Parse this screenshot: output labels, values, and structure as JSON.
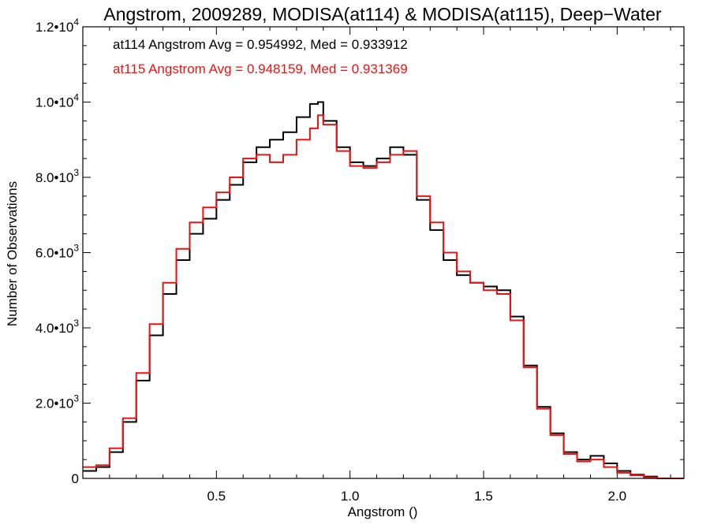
{
  "chart_data": {
    "type": "line",
    "title": "Angstrom, 2009289, MODISA(at114) & MODISA(at115), Deep−Water",
    "xlabel": "Angstrom ()",
    "ylabel": "Number of Observations",
    "xlim": [
      0.0,
      2.25
    ],
    "ylim": [
      0,
      12000
    ],
    "x_ticks": [
      0.5,
      1.0,
      1.5,
      2.0
    ],
    "x_tick_labels": [
      "0.5",
      "1.0",
      "1.5",
      "2.0"
    ],
    "y_ticks": [
      0,
      2000,
      4000,
      6000,
      8000,
      10000,
      12000
    ],
    "y_tick_labels": [
      {
        "mantissa": "0",
        "exp": ""
      },
      {
        "mantissa": "2.0•10",
        "exp": "3"
      },
      {
        "mantissa": "4.0•10",
        "exp": "3"
      },
      {
        "mantissa": "6.0•10",
        "exp": "3"
      },
      {
        "mantissa": "8.0•10",
        "exp": "3"
      },
      {
        "mantissa": "1.0•10",
        "exp": "4"
      },
      {
        "mantissa": "1.2•10",
        "exp": "4"
      }
    ],
    "grid": false,
    "annotations": [
      {
        "text": "at114 Angstrom Avg = 0.954992, Med = 0.933912",
        "color": "#000000"
      },
      {
        "text": "at115 Angstrom Avg = 0.948159, Med = 0.931369",
        "color": "#ee1111"
      }
    ],
    "series": [
      {
        "name": "at114",
        "color": "#000000",
        "x": [
          0.0,
          0.05,
          0.1,
          0.15,
          0.2,
          0.25,
          0.3,
          0.35,
          0.4,
          0.45,
          0.5,
          0.55,
          0.6,
          0.65,
          0.7,
          0.75,
          0.8,
          0.85,
          0.88,
          0.9,
          0.95,
          1.0,
          1.05,
          1.1,
          1.15,
          1.2,
          1.25,
          1.3,
          1.35,
          1.4,
          1.45,
          1.5,
          1.55,
          1.6,
          1.65,
          1.7,
          1.75,
          1.8,
          1.85,
          1.9,
          1.95,
          2.0,
          2.05,
          2.1,
          2.15,
          2.2,
          2.25
        ],
        "y": [
          200,
          300,
          700,
          1500,
          2600,
          3800,
          4900,
          5800,
          6500,
          6900,
          7400,
          7800,
          8400,
          8800,
          9000,
          9200,
          9600,
          9950,
          10000,
          9500,
          8800,
          8400,
          8300,
          8500,
          8800,
          8600,
          7400,
          6600,
          5800,
          5400,
          5200,
          5100,
          5000,
          4300,
          3000,
          1900,
          1200,
          700,
          500,
          600,
          400,
          200,
          100,
          50,
          0,
          0,
          0
        ],
        "step": true
      },
      {
        "name": "at115",
        "color": "#ee1111",
        "x": [
          0.0,
          0.05,
          0.1,
          0.15,
          0.2,
          0.25,
          0.3,
          0.35,
          0.4,
          0.45,
          0.5,
          0.55,
          0.6,
          0.65,
          0.7,
          0.75,
          0.8,
          0.85,
          0.88,
          0.9,
          0.95,
          1.0,
          1.05,
          1.1,
          1.15,
          1.2,
          1.25,
          1.3,
          1.35,
          1.4,
          1.45,
          1.5,
          1.55,
          1.6,
          1.65,
          1.7,
          1.75,
          1.8,
          1.85,
          1.9,
          1.95,
          2.0,
          2.05,
          2.1,
          2.15,
          2.2,
          2.25
        ],
        "y": [
          300,
          350,
          800,
          1600,
          2800,
          4100,
          5200,
          6100,
          6800,
          7200,
          7600,
          8000,
          8500,
          8600,
          8400,
          8600,
          9000,
          9300,
          9650,
          9400,
          8700,
          8300,
          8250,
          8400,
          8600,
          8700,
          7500,
          6800,
          6000,
          5500,
          5200,
          5000,
          4900,
          4200,
          2950,
          1850,
          1150,
          650,
          450,
          500,
          300,
          150,
          80,
          30,
          0,
          0,
          0
        ],
        "step": true
      }
    ]
  }
}
